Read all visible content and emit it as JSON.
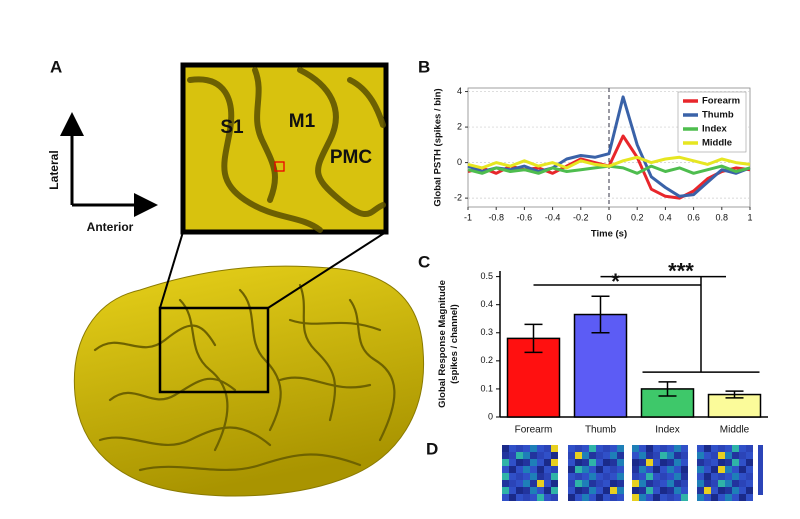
{
  "figure": {
    "panel_labels": [
      "A",
      "B",
      "C",
      "D"
    ],
    "axis_arrows": {
      "vertical": "Lateral",
      "horizontal": "Anterior"
    },
    "regions": [
      "S1",
      "M1",
      "PMC"
    ]
  },
  "chart_data": [
    {
      "type": "line",
      "xlabel": "Time (s)",
      "ylabel": "Global PSTH (spikes / bin)",
      "x": [
        -1,
        -0.9,
        -0.8,
        -0.7,
        -0.6,
        -0.5,
        -0.4,
        -0.3,
        -0.2,
        -0.1,
        0,
        0.1,
        0.2,
        0.3,
        0.4,
        0.5,
        0.6,
        0.7,
        0.8,
        0.9,
        1
      ],
      "xlim": [
        -1,
        1
      ],
      "xticks": [
        -1,
        -0.8,
        -0.6,
        -0.4,
        -0.2,
        0,
        0.2,
        0.4,
        0.6,
        0.8,
        1
      ],
      "ylim": [
        -2.5,
        4.2
      ],
      "yticks": [
        -2,
        0,
        2,
        4
      ],
      "grid": true,
      "legend": "upper right",
      "series": [
        {
          "name": "Forearm",
          "color": "#e8262b",
          "values": [
            -0.5,
            -0.3,
            -0.6,
            -0.2,
            -0.4,
            -0.3,
            -0.6,
            -0.2,
            0.2,
            0.0,
            -0.2,
            1.5,
            0.3,
            -1.5,
            -1.9,
            -2.0,
            -1.6,
            -0.9,
            -0.5,
            -0.3,
            -0.4
          ]
        },
        {
          "name": "Thumb",
          "color": "#3a62a8",
          "values": [
            -0.2,
            -0.5,
            -0.3,
            -0.4,
            -0.2,
            -0.5,
            -0.3,
            0.2,
            0.4,
            0.3,
            0.5,
            3.7,
            1.0,
            -0.8,
            -1.4,
            -1.9,
            -1.8,
            -1.1,
            -0.4,
            -0.6,
            -0.3
          ]
        },
        {
          "name": "Index",
          "color": "#4ebd4e",
          "values": [
            -0.4,
            -0.6,
            -0.3,
            -0.5,
            -0.4,
            -0.6,
            -0.3,
            -0.5,
            -0.4,
            -0.3,
            -0.2,
            -0.3,
            -0.6,
            -0.2,
            -0.5,
            -0.3,
            -0.6,
            -0.4,
            -0.2,
            -0.5,
            -0.3
          ]
        },
        {
          "name": "Middle",
          "color": "#e6e621",
          "values": [
            -0.1,
            -0.3,
            0.0,
            -0.2,
            0.1,
            -0.2,
            0.0,
            -0.3,
            0.1,
            -0.1,
            -0.2,
            0.1,
            0.3,
            0.0,
            0.2,
            0.3,
            0.1,
            -0.1,
            0.2,
            0.0,
            -0.1
          ]
        }
      ]
    },
    {
      "type": "bar",
      "ylabel": "Global Response Magnitude\n(spikes / channel)",
      "categories": [
        "Forearm",
        "Thumb",
        "Index",
        "Middle"
      ],
      "values": [
        0.28,
        0.365,
        0.1,
        0.08
      ],
      "errors": [
        0.05,
        0.065,
        0.025,
        0.012
      ],
      "colors": [
        "#ff1010",
        "#5c5cf5",
        "#3ec86a",
        "#fbfb9a"
      ],
      "ylim": [
        0,
        0.52
      ],
      "yticks": [
        0,
        0.1,
        0.2,
        0.3,
        0.4,
        0.5
      ],
      "annotations": [
        "***",
        "*"
      ]
    }
  ]
}
